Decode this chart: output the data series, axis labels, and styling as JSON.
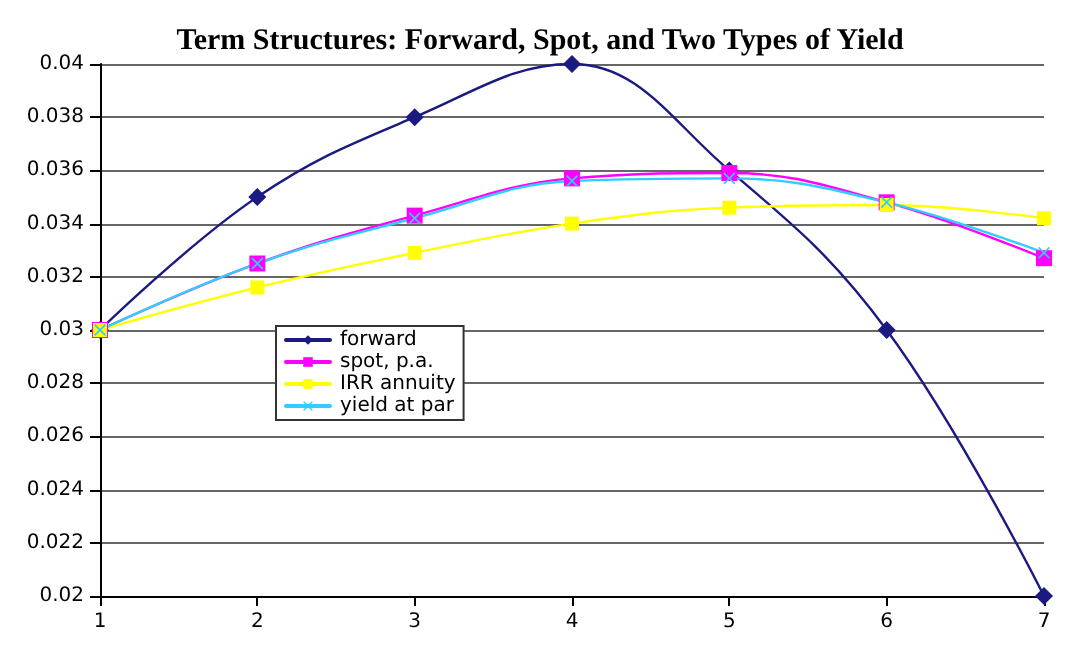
{
  "chart_data": {
    "type": "line",
    "title": "Term Structures: Forward, Spot, and Two Types of Yield",
    "x": [
      1,
      2,
      3,
      4,
      5,
      6,
      7
    ],
    "xlim": [
      1,
      7
    ],
    "xticks": [
      1,
      2,
      3,
      4,
      5,
      6,
      7
    ],
    "ylim": [
      0.02,
      0.04
    ],
    "yticks": [
      0.02,
      0.022,
      0.024,
      0.026,
      0.028,
      0.03,
      0.032,
      0.034,
      0.036,
      0.038,
      0.04
    ],
    "grid": "y",
    "legend": "left",
    "series": [
      {
        "name": "forward",
        "color": "#1a1a80",
        "marker": "diamond",
        "values": [
          0.03,
          0.035,
          0.038,
          0.04,
          0.036,
          0.03,
          0.02
        ]
      },
      {
        "name": "spot, p.a.",
        "color": "#ff00ff",
        "marker": "square",
        "values": [
          0.03,
          0.0325,
          0.0343,
          0.0357,
          0.0359,
          0.0348,
          0.0327
        ]
      },
      {
        "name": "IRR annuity",
        "color": "#ffff00",
        "marker": "square",
        "values": [
          0.03,
          0.0316,
          0.0329,
          0.034,
          0.0346,
          0.0347,
          0.0342
        ]
      },
      {
        "name": "yield at par",
        "color": "#33ccff",
        "marker": "cross",
        "values": [
          0.03,
          0.0325,
          0.0342,
          0.0356,
          0.0357,
          0.0348,
          0.0329
        ]
      }
    ]
  }
}
